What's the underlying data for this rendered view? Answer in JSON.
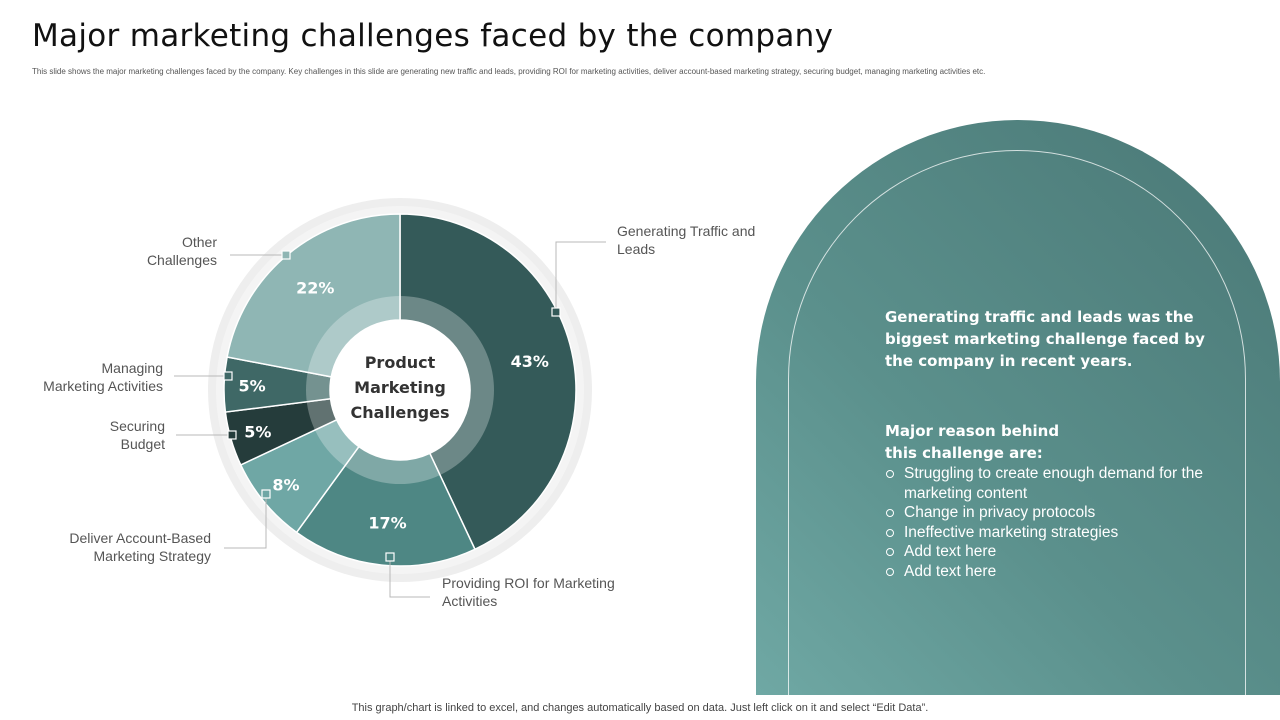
{
  "title": "Major marketing challenges faced by the company",
  "subtitle": "This slide shows the major marketing challenges faced by the company. Key challenges in this slide are generating  new  traffic and leads, providing ROI for marketing activities, deliver account-based marketing strategy, securing budget, managing marketing activities etc.",
  "chart_data": {
    "type": "pie",
    "style": "donut",
    "center_label": [
      "Product",
      "Marketing",
      "Challenges"
    ],
    "slices": [
      {
        "name": "Generating Traffic and Leads",
        "label_lines": [
          "Generating Traffic and",
          "Leads"
        ],
        "value": 43,
        "display": "43%",
        "color": "#345a59"
      },
      {
        "name": "Providing ROI for Marketing Activities",
        "label_lines": [
          "Providing ROI for Marketing",
          "Activities"
        ],
        "value": 17,
        "display": "17%",
        "color": "#4e8784"
      },
      {
        "name": "Deliver Account-Based Marketing Strategy",
        "label_lines": [
          "Deliver Account-Based",
          "Marketing Strategy"
        ],
        "value": 8,
        "display": "8%",
        "color": "#6fa7a5"
      },
      {
        "name": "Securing Budget",
        "label_lines": [
          "Securing",
          "Budget"
        ],
        "value": 5,
        "display": "5%",
        "color": "#253c3b"
      },
      {
        "name": "Managing Marketing Activities",
        "label_lines": [
          "Managing",
          "Marketing Activities"
        ],
        "value": 5,
        "display": "5%",
        "color": "#3f6866"
      },
      {
        "name": "Other Challenges",
        "label_lines": [
          "Other",
          "Challenges"
        ],
        "value": 22,
        "display": "22%",
        "color": "#8fb6b4"
      }
    ]
  },
  "panel": {
    "headline": "Generating traffic and leads was the biggest marketing challenge faced by the company in recent years.",
    "reason_heading": [
      "Major reason behind",
      "this challenge are:"
    ],
    "reasons": [
      "Struggling to create enough demand for the marketing content",
      "Change in privacy protocols",
      "Ineffective  marketing strategies",
      "Add text here",
      "Add text here"
    ]
  },
  "footer": "This graph/chart is linked to excel,  and changes automatically based on data. Just left click on it and select “Edit Data”."
}
